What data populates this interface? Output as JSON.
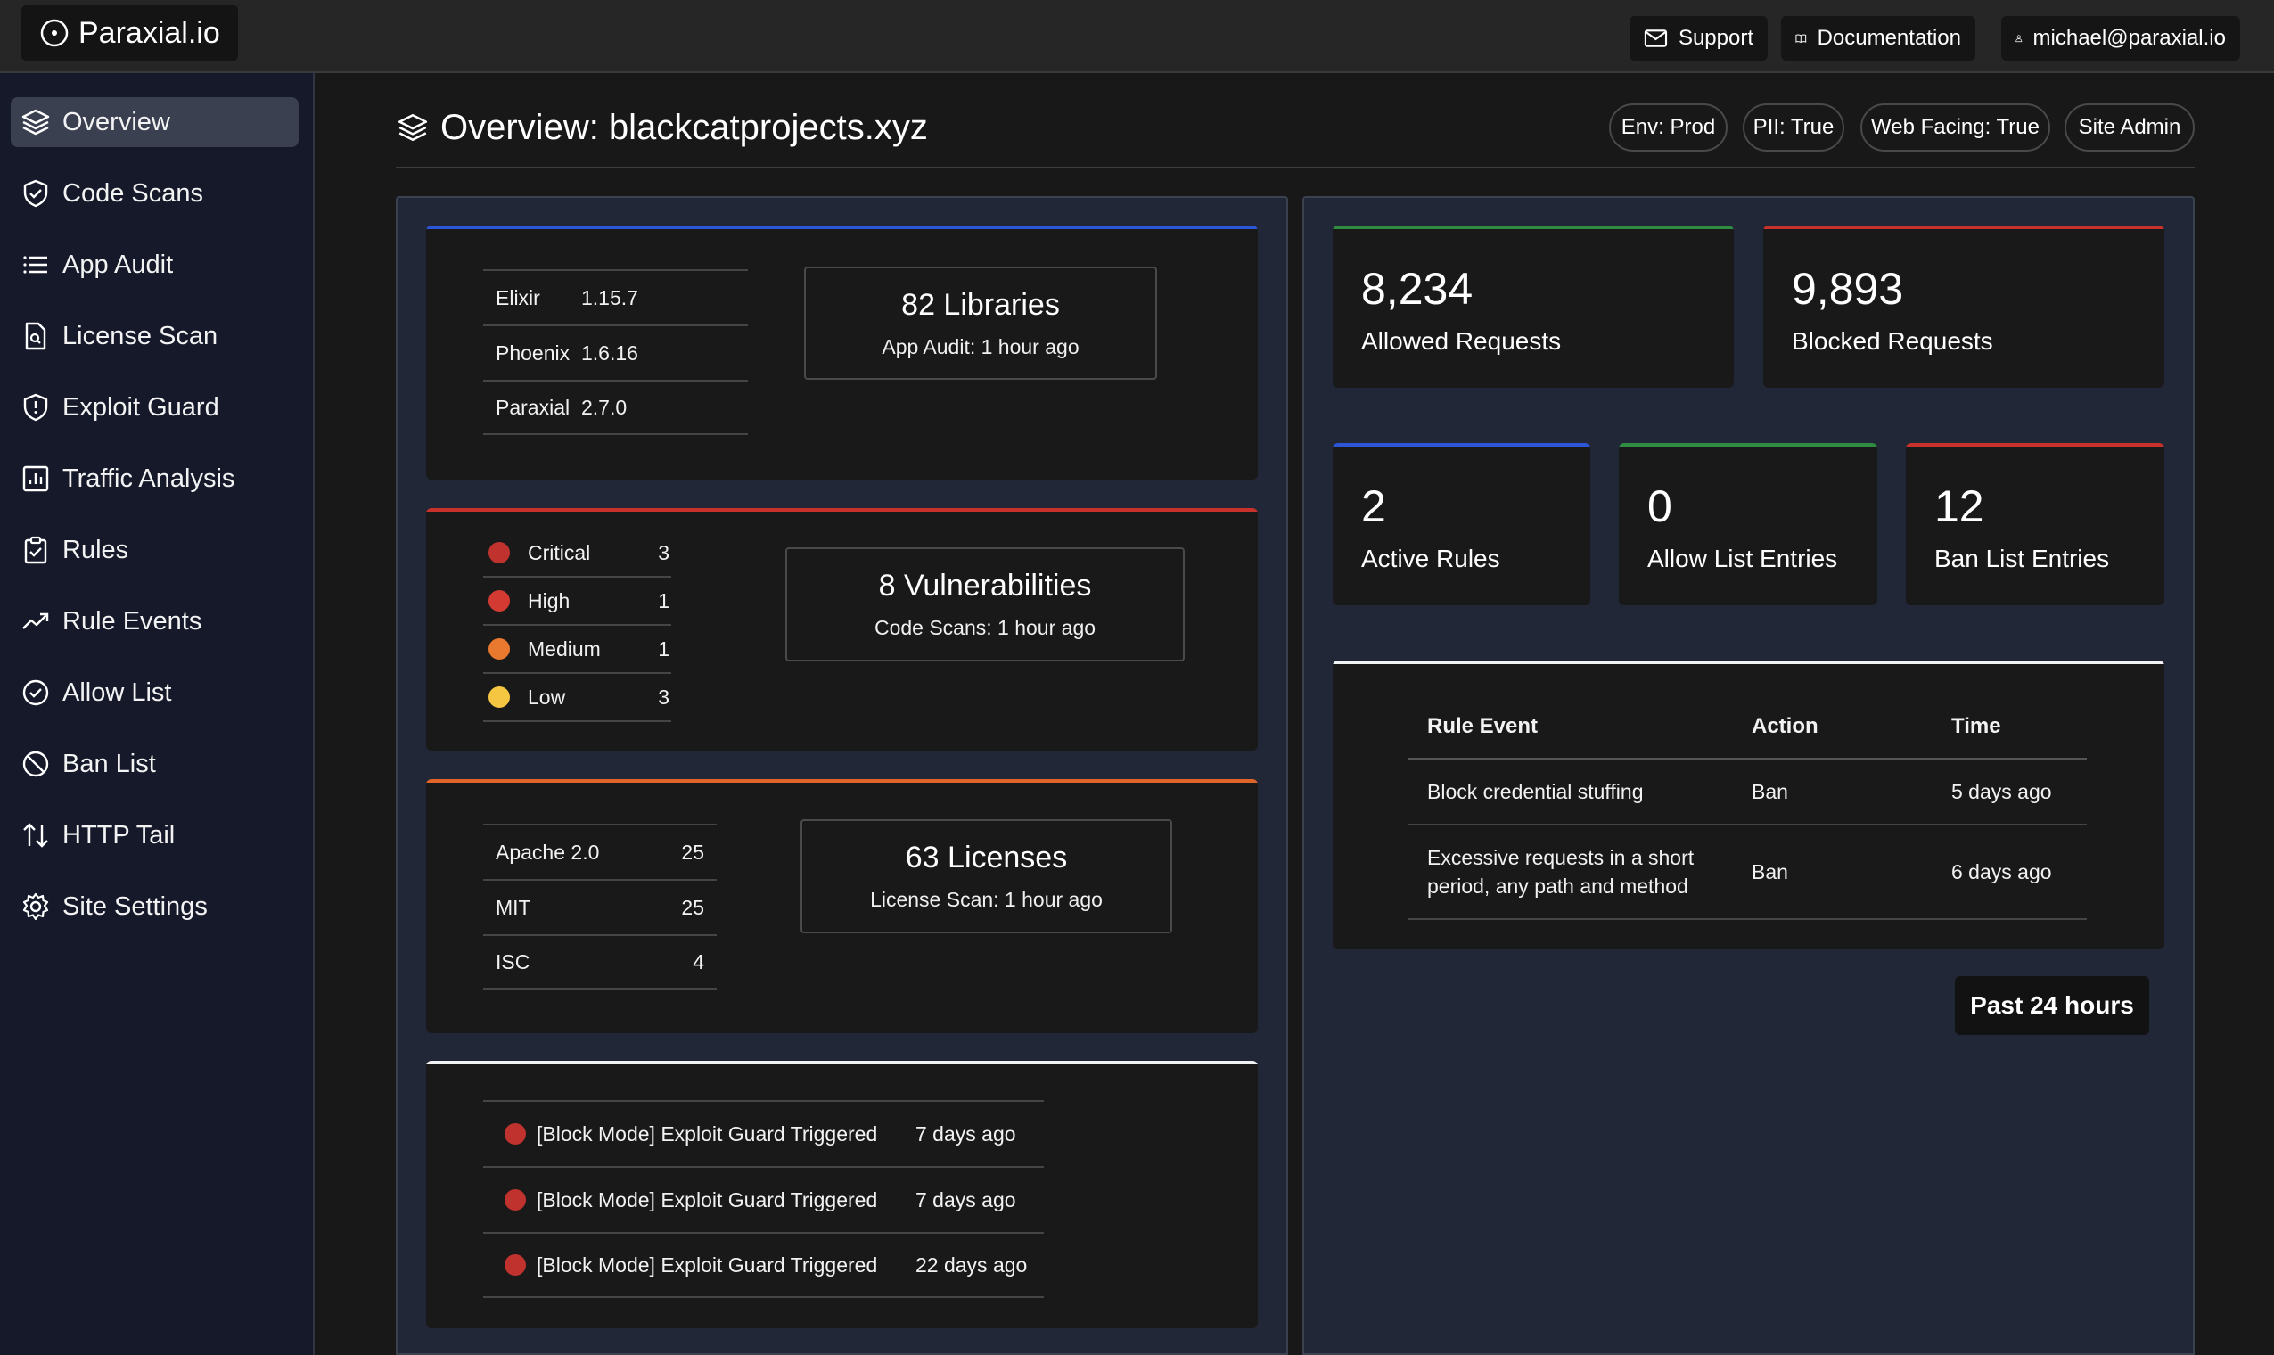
{
  "brand": {
    "name": "Paraxial.io"
  },
  "topbar": {
    "support": "Support",
    "documentation": "Documentation",
    "account": "michael@paraxial.io"
  },
  "sidebar": {
    "items": [
      {
        "label": "Overview",
        "icon": "layers-icon",
        "active": true
      },
      {
        "label": "Code Scans",
        "icon": "shield-check-icon"
      },
      {
        "label": "App Audit",
        "icon": "list-icon"
      },
      {
        "label": "License Scan",
        "icon": "document-search-icon"
      },
      {
        "label": "Exploit Guard",
        "icon": "shield-exclamation-icon"
      },
      {
        "label": "Traffic Analysis",
        "icon": "bar-chart-icon"
      },
      {
        "label": "Rules",
        "icon": "clipboard-check-icon"
      },
      {
        "label": "Rule Events",
        "icon": "trending-up-icon"
      },
      {
        "label": "Allow List",
        "icon": "check-circle-icon"
      },
      {
        "label": "Ban List",
        "icon": "no-symbol-icon"
      },
      {
        "label": "HTTP Tail",
        "icon": "arrows-up-down-icon"
      },
      {
        "label": "Site Settings",
        "icon": "gear-icon"
      }
    ]
  },
  "header": {
    "title": "Overview: blackcatprojects.xyz",
    "tags": [
      "Env: Prod",
      "PII: True",
      "Web Facing: True",
      "Site Admin"
    ]
  },
  "versions": {
    "rows": [
      {
        "name": "Elixir",
        "version": "1.15.7"
      },
      {
        "name": "Phoenix",
        "version": "1.6.16"
      },
      {
        "name": "Paraxial",
        "version": "2.7.0"
      }
    ],
    "summary": "82 Libraries",
    "sub": "App Audit: 1 hour ago"
  },
  "vulnerabilities": {
    "rows": [
      {
        "label": "Critical",
        "count": "3",
        "color": "#c0322d"
      },
      {
        "label": "High",
        "count": "1",
        "color": "#d23a32"
      },
      {
        "label": "Medium",
        "count": "1",
        "color": "#e9792f"
      },
      {
        "label": "Low",
        "count": "3",
        "color": "#f5c642"
      }
    ],
    "summary": "8 Vulnerabilities",
    "sub": "Code Scans: 1 hour ago"
  },
  "licenses": {
    "rows": [
      {
        "name": "Apache 2.0",
        "count": "25"
      },
      {
        "name": "MIT",
        "count": "25"
      },
      {
        "name": "ISC",
        "count": "4"
      }
    ],
    "summary": "63 Licenses",
    "sub": "License Scan: 1 hour ago"
  },
  "exploit_events": [
    {
      "text": "[Block Mode] Exploit Guard Triggered",
      "time": "7 days ago"
    },
    {
      "text": "[Block Mode] Exploit Guard Triggered",
      "time": "7 days ago"
    },
    {
      "text": "[Block Mode] Exploit Guard Triggered",
      "time": "22 days ago"
    }
  ],
  "stats": {
    "allowed": {
      "value": "8,234",
      "label": "Allowed Requests"
    },
    "blocked": {
      "value": "9,893",
      "label": "Blocked Requests"
    },
    "active_rules": {
      "value": "2",
      "label": "Active Rules"
    },
    "allow_list": {
      "value": "0",
      "label": "Allow List Entries"
    },
    "ban_list": {
      "value": "12",
      "label": "Ban List Entries"
    }
  },
  "rule_events": {
    "headers": {
      "event": "Rule Event",
      "action": "Action",
      "time": "Time"
    },
    "rows": [
      {
        "event": "Block credential stuffing",
        "action": "Ban",
        "time": "5 days ago"
      },
      {
        "event": "Excessive requests in a short period, any path and method",
        "action": "Ban",
        "time": "6 days ago"
      }
    ]
  },
  "time_range": "Past 24 hours",
  "colors": {
    "accent_blue": "#2d55d8",
    "accent_red": "#c8322c",
    "accent_orange": "#e0652b",
    "accent_green": "#2f8d43",
    "accent_white": "#f2f2f2",
    "sidebar_bg": "#15192a",
    "panel_bg": "#212737"
  }
}
